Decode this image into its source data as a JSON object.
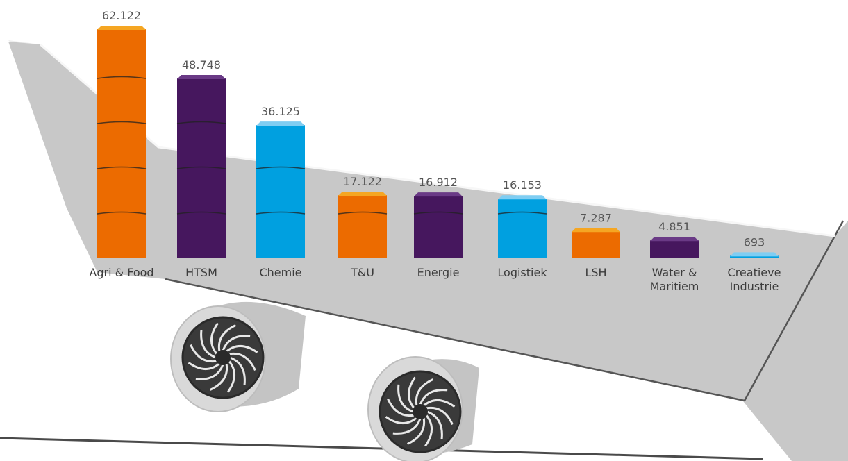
{
  "chart_data": {
    "type": "bar",
    "categories": [
      "Agri & Food",
      "HTSM",
      "Chemie",
      "T&U",
      "Energie",
      "Logistiek",
      "LSH",
      "Water & Maritiem",
      "Creatieve Industrie"
    ],
    "category_lines": [
      [
        "Agri & Food"
      ],
      [
        "HTSM"
      ],
      [
        "Chemie"
      ],
      [
        "T&U"
      ],
      [
        "Energie"
      ],
      [
        "Logistiek"
      ],
      [
        "LSH"
      ],
      [
        "Water &",
        "Maritiem"
      ],
      [
        "Creatieve",
        "Industrie"
      ]
    ],
    "values": [
      62122,
      48748,
      36125,
      17122,
      16912,
      16153,
      7287,
      4851,
      693
    ],
    "value_labels": [
      "62.122",
      "48.748",
      "36.125",
      "17.122",
      "16.912",
      "16.153",
      "7.287",
      "4.851",
      "693"
    ],
    "bar_colors": [
      "#ec6b00",
      "#46175e",
      "#00a0e0",
      "#ec6b00",
      "#46175e",
      "#00a0e0",
      "#ec6b00",
      "#46175e",
      "#00a0e0"
    ],
    "cap_colors": [
      "#f5a623",
      "#6a3a86",
      "#7fcdf2",
      "#f5a623",
      "#6a3a86",
      "#7fcdf2",
      "#f5a623",
      "#6a3a86",
      "#7fcdf2"
    ],
    "title": "",
    "xlabel": "",
    "ylabel": "",
    "grid": false,
    "legend": "none"
  },
  "colors": {
    "orange": "#ec6b00",
    "purple": "#46175e",
    "blue": "#00a0e0",
    "wing_grey": "#c8c8c8",
    "wing_light": "#eeeeee",
    "engine_dark": "#3a3a3a"
  },
  "decoration": {
    "background": "airplane-wing-with-two-engines"
  }
}
